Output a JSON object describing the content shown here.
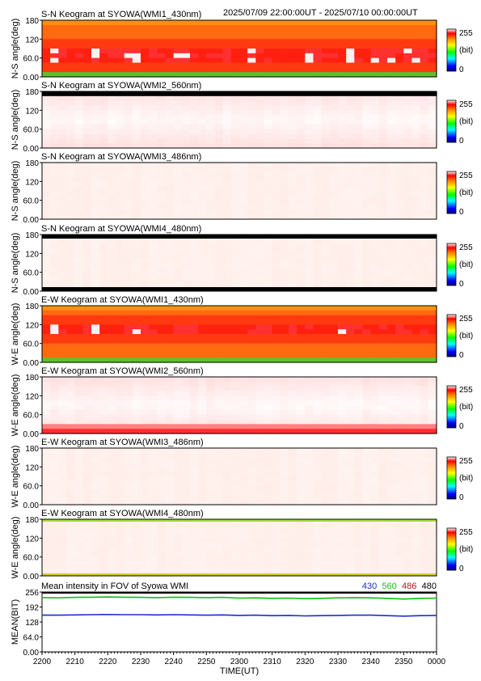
{
  "chart_data": {
    "header_range": "2025/07/09 22:00:00UT - 2025/07/10 00:00:00UT",
    "colorbar": {
      "max_label": "255",
      "unit_label": "(bit)",
      "min_label": "0"
    },
    "keograms": [
      {
        "type": "heatmap",
        "title": "S-N Keogram at SYOWA(WMI1_430nm)",
        "ylabel": "N-S angle(deg)",
        "yticks": [
          "180",
          "120",
          "60.0",
          "0.00"
        ],
        "ylim": [
          0,
          180
        ],
        "intensity": "strong",
        "style": "band_red"
      },
      {
        "type": "heatmap",
        "title": "S-N Keogram at SYOWA(WMI2_560nm)",
        "ylabel": "N-S angle(deg)",
        "yticks": [
          "180",
          "120",
          "60.0",
          "0.00"
        ],
        "ylim": [
          0,
          180
        ],
        "intensity": "saturated",
        "style": "pink_white"
      },
      {
        "type": "heatmap",
        "title": "S-N Keogram at SYOWA(WMI3_486nm)",
        "ylabel": "N-S angle(deg)",
        "yticks": [
          "180",
          "120",
          "60.0",
          "0.00"
        ],
        "ylim": [
          0,
          180
        ],
        "intensity": "flat",
        "style": "flat_light"
      },
      {
        "type": "heatmap",
        "title": "S-N Keogram at SYOWA(WMI4_480nm)",
        "ylabel": "N-S angle(deg)",
        "yticks": [
          "180",
          "120",
          "60.0",
          "0.00"
        ],
        "ylim": [
          0,
          180
        ],
        "intensity": "flat",
        "style": "flat_black_edges"
      },
      {
        "type": "heatmap",
        "title": "E-W Keogram at SYOWA(WMI1_430nm)",
        "ylabel": "W-E angle(deg)",
        "yticks": [
          "180",
          "120",
          "60.0",
          "0.00"
        ],
        "ylim": [
          0,
          180
        ],
        "intensity": "strong",
        "style": "band_red_ew"
      },
      {
        "type": "heatmap",
        "title": "E-W Keogram at SYOWA(WMI2_560nm)",
        "ylabel": "W-E angle(deg)",
        "yticks": [
          "180",
          "120",
          "60.0",
          "0.00"
        ],
        "ylim": [
          0,
          180
        ],
        "intensity": "saturated",
        "style": "pink_white_ew"
      },
      {
        "type": "heatmap",
        "title": "E-W Keogram at SYOWA(WMI3_486nm)",
        "ylabel": "W-E angle(deg)",
        "yticks": [
          "180",
          "120",
          "60.0",
          "0.00"
        ],
        "ylim": [
          0,
          180
        ],
        "intensity": "flat",
        "style": "flat_light"
      },
      {
        "type": "heatmap",
        "title": "E-W Keogram at SYOWA(WMI4_480nm)",
        "ylabel": "W-E angle(deg)",
        "yticks": [
          "180",
          "120",
          "60.0",
          "0.00"
        ],
        "ylim": [
          0,
          180
        ],
        "intensity": "flat",
        "style": "flat_green_edges"
      }
    ],
    "mean_panel": {
      "type": "line",
      "title": "Mean intensity in FOV of Syowa WMI",
      "ylabel": "MEAN(BIT)",
      "yticks": [
        "256",
        "192",
        "128",
        "64.0",
        "0.00"
      ],
      "ylim": [
        0,
        256
      ],
      "legend_placement": "top-right",
      "series": [
        {
          "name": "430",
          "color": "#1a2fd0",
          "values": [
            157,
            157,
            158,
            159,
            160,
            159,
            159,
            158,
            159,
            158,
            157,
            158,
            156,
            157,
            155,
            156,
            154,
            155,
            156,
            157,
            157,
            155,
            153,
            155,
            156
          ]
        },
        {
          "name": "560",
          "color": "#10c010",
          "values": [
            232,
            231,
            233,
            234,
            235,
            234,
            233,
            232,
            234,
            233,
            232,
            233,
            230,
            231,
            229,
            230,
            228,
            229,
            231,
            232,
            231,
            229,
            226,
            229,
            230
          ]
        },
        {
          "name": "486",
          "color": "#b01818",
          "values": [
            252,
            252,
            252,
            252,
            252,
            252,
            252,
            252,
            252,
            252,
            252,
            252,
            252,
            252,
            252,
            252,
            252,
            252,
            252,
            252,
            252,
            252,
            252,
            252,
            252
          ]
        },
        {
          "name": "480",
          "color": "#000000",
          "values": [
            253,
            253,
            253,
            253,
            253,
            253,
            253,
            253,
            253,
            253,
            253,
            253,
            253,
            253,
            253,
            253,
            253,
            253,
            253,
            253,
            253,
            253,
            253,
            253,
            253
          ]
        }
      ]
    },
    "x_axis": {
      "ticks": [
        "2200",
        "2210",
        "2220",
        "2230",
        "2240",
        "2250",
        "2300",
        "2310",
        "2320",
        "2330",
        "2340",
        "2350",
        "0000"
      ],
      "xlabel": "TIME(UT)"
    }
  }
}
